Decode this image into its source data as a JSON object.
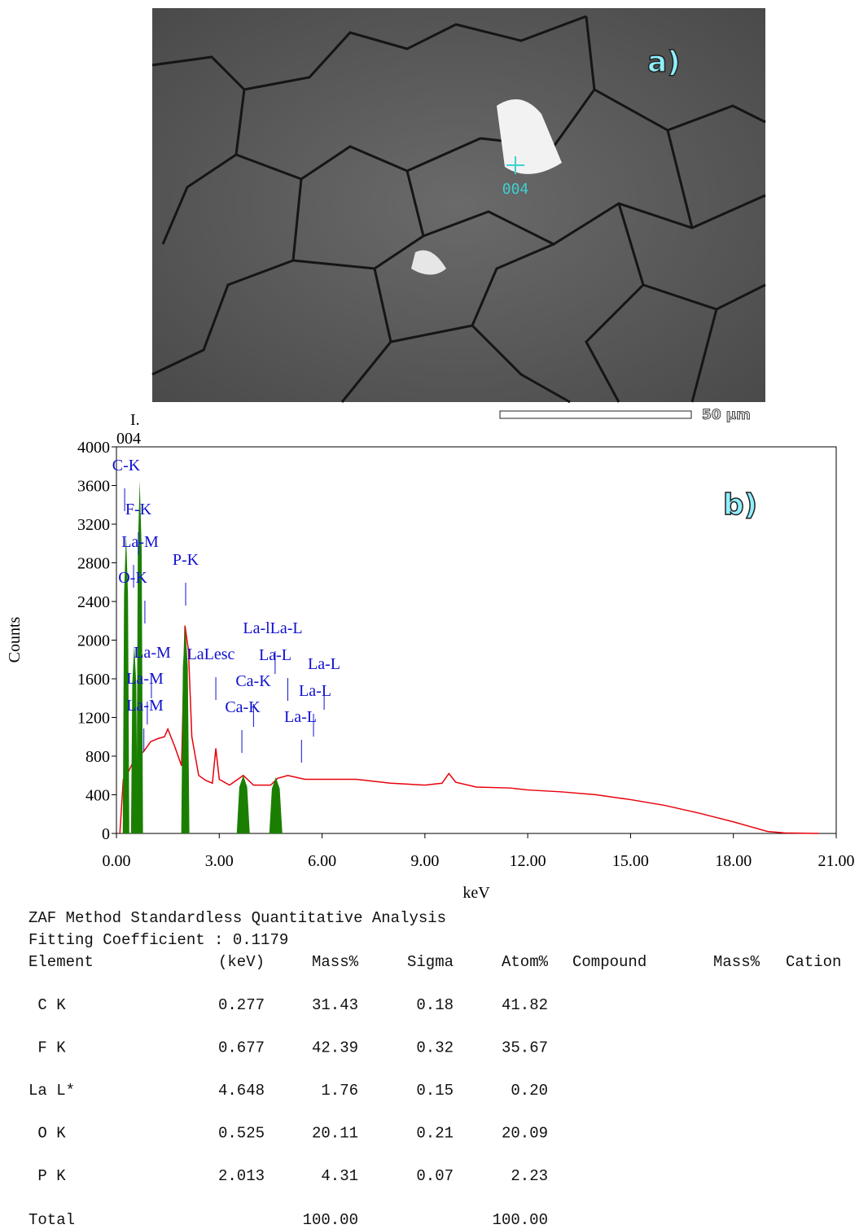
{
  "image": {
    "panel_label": "a)",
    "point_label": "004",
    "scale_label": "50 µm"
  },
  "chart_data": {
    "type": "line",
    "title": "I.",
    "subtitle": "004",
    "panel_label": "b)",
    "x_label": "keV",
    "y_label": "Counts",
    "xlim": [
      0,
      21
    ],
    "ylim": [
      0,
      4000
    ],
    "xticks": [
      {
        "value": 0,
        "label": "0.00"
      },
      {
        "value": 3,
        "label": "3.00"
      },
      {
        "value": 6,
        "label": "6.00"
      },
      {
        "value": 9,
        "label": "9.00"
      },
      {
        "value": 12,
        "label": "12.00"
      },
      {
        "value": 15,
        "label": "15.00"
      },
      {
        "value": 18,
        "label": "18.00"
      },
      {
        "value": 21,
        "label": "21.00"
      }
    ],
    "yticks": [
      0,
      400,
      800,
      1200,
      1600,
      2000,
      2400,
      2800,
      3200,
      3600,
      4000
    ],
    "series": [
      {
        "color": "#e8000b",
        "x": [
          0.1,
          0.2,
          0.3,
          0.5,
          0.8,
          1.0,
          1.2,
          1.4,
          1.5,
          1.7,
          1.9,
          2.0,
          2.1,
          2.2,
          2.4,
          2.6,
          2.8,
          2.9,
          3.0,
          3.3,
          3.7,
          4.0,
          4.5,
          4.7,
          5.0,
          5.5,
          6.0,
          7.0,
          8.0,
          9.0,
          9.5,
          9.7,
          9.9,
          10.5,
          11.5,
          12.0,
          13.0,
          14.0,
          15.0,
          16.0,
          17.0,
          18.0,
          18.5,
          19.0,
          19.5,
          20.5
        ],
        "values": [
          0,
          560,
          600,
          750,
          850,
          950,
          980,
          1000,
          1080,
          900,
          700,
          2150,
          1900,
          1000,
          600,
          550,
          520,
          880,
          560,
          500,
          600,
          500,
          500,
          570,
          600,
          560,
          560,
          560,
          520,
          500,
          520,
          620,
          530,
          480,
          470,
          450,
          430,
          400,
          350,
          290,
          210,
          120,
          70,
          20,
          5,
          0
        ]
      },
      {
        "color": "#1a7f00",
        "fill": true,
        "x": [
          0.28,
          0.52,
          0.68,
          2.01,
          3.7,
          4.65
        ],
        "values": [
          3100,
          1950,
          3650,
          2150,
          600,
          580
        ]
      }
    ],
    "annotations": [
      {
        "label": "C-K",
        "energy": 0.24
      },
      {
        "label": "F-K",
        "energy": 0.64
      },
      {
        "label": "La-M",
        "energy": 0.5
      },
      {
        "label": "O-K",
        "energy": 0.83
      },
      {
        "label": "P-K",
        "energy": 2.02
      },
      {
        "label": "La-M",
        "energy": 1.02
      },
      {
        "label": "La-M",
        "energy": 0.9
      },
      {
        "label": "La-M",
        "energy": 0.8
      },
      {
        "label": "LaLesc",
        "energy": 2.9
      },
      {
        "label": "La-lLa-L",
        "energy": 4.63
      },
      {
        "label": "La-L",
        "energy": 5.0
      },
      {
        "label": "Ca-K",
        "energy": 4.0
      },
      {
        "label": "Ca-K",
        "energy": 3.66
      },
      {
        "label": "La-L",
        "energy": 6.06
      },
      {
        "label": "La-L",
        "energy": 5.75
      },
      {
        "label": "La-L",
        "energy": 5.4
      }
    ]
  },
  "table": {
    "title": "ZAF Method Standardless Quantitative Analysis",
    "subtitle": "Fitting Coefficient : 0.1179",
    "header": [
      "Element",
      "(keV)",
      "Mass%",
      "Sigma",
      "Atom%",
      "Compound",
      "Mass%",
      "Cation"
    ],
    "rows": [
      [
        " C K",
        "0.277",
        "31.43",
        "0.18",
        "41.82"
      ],
      [
        " F K",
        "0.677",
        "42.39",
        "0.32",
        "35.67"
      ],
      [
        "La L*",
        "4.648",
        "1.76",
        "0.15",
        "0.20"
      ],
      [
        " O K",
        "0.525",
        "20.11",
        "0.21",
        "20.09"
      ],
      [
        " P K",
        "2.013",
        "4.31",
        "0.07",
        "2.23"
      ]
    ],
    "total": [
      "Total",
      "100.00",
      "100.00"
    ]
  }
}
